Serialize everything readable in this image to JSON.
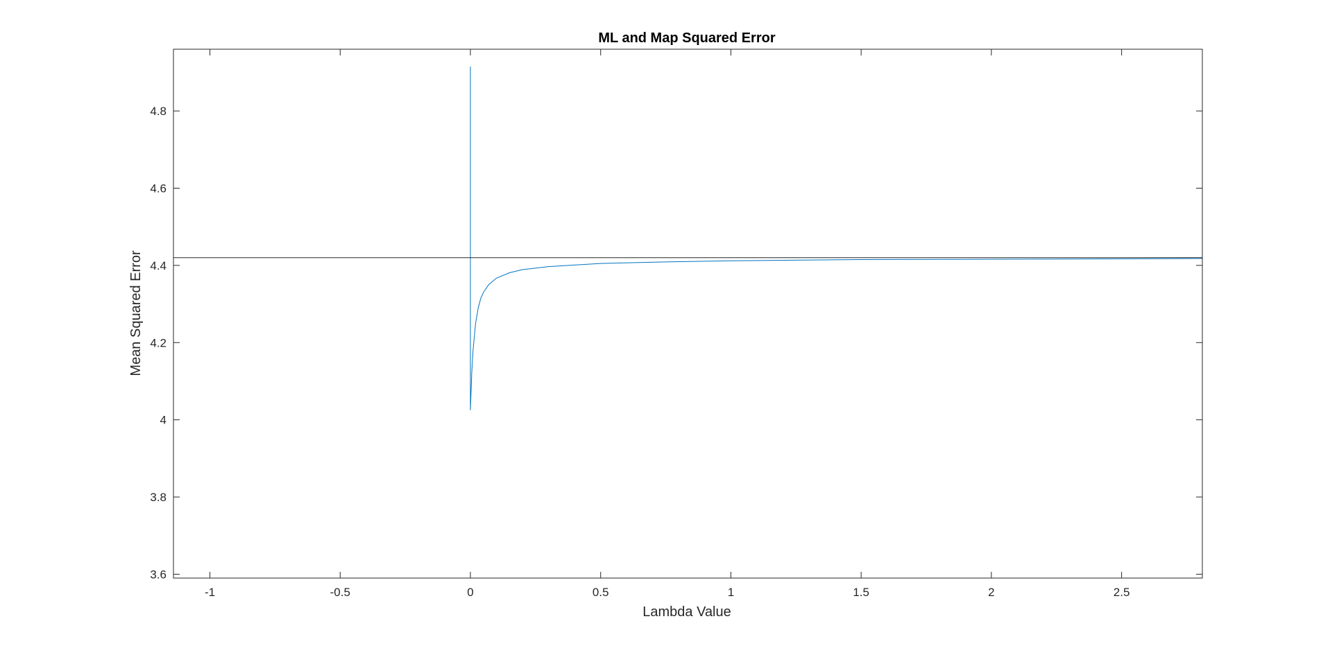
{
  "chart_data": {
    "type": "line",
    "title": "ML and Map Squared Error",
    "xlabel": "Lambda Value",
    "ylabel": "Mean Squared Error",
    "xlim": [
      -1.14,
      2.81
    ],
    "ylim": [
      3.59,
      4.96
    ],
    "x_ticks": [
      -1,
      -0.5,
      0,
      0.5,
      1,
      1.5,
      2,
      2.5
    ],
    "x_tick_labels": [
      "-1",
      "-0.5",
      "0",
      "0.5",
      "1",
      "1.5",
      "2",
      "2.5"
    ],
    "y_ticks": [
      3.6,
      3.8,
      4.0,
      4.2,
      4.4,
      4.6,
      4.8
    ],
    "y_tick_labels": [
      "3.6",
      "3.8",
      "4",
      "4.2",
      "4.4",
      "4.6",
      "4.8"
    ],
    "grid": false,
    "legend": "none",
    "series": [
      {
        "color": "#0072bd",
        "x": [
          0,
          0,
          0.005,
          0.01,
          0.02,
          0.03,
          0.04,
          0.05,
          0.07,
          0.1,
          0.15,
          0.2,
          0.3,
          0.5,
          0.75,
          1.0,
          1.5,
          2.0,
          2.5,
          2.81
        ],
        "y": [
          4.915,
          4.025,
          4.12,
          4.18,
          4.25,
          4.29,
          4.315,
          4.33,
          4.35,
          4.367,
          4.381,
          4.389,
          4.397,
          4.405,
          4.409,
          4.412,
          4.415,
          4.416,
          4.417,
          4.418
        ]
      },
      {
        "color": "#262626",
        "x": [
          -1.14,
          2.81
        ],
        "y": [
          4.42,
          4.42
        ]
      }
    ]
  }
}
